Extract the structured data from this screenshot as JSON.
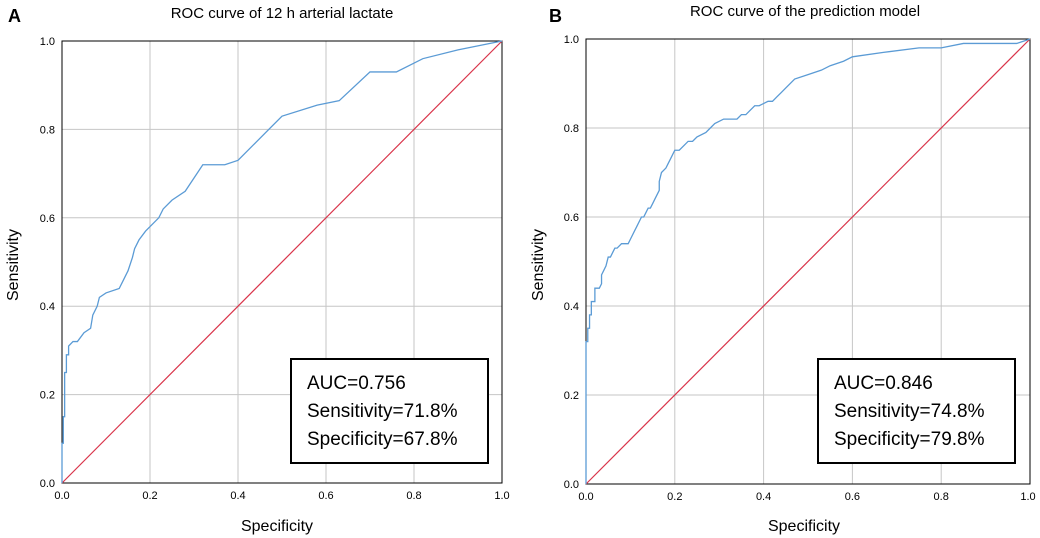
{
  "chart_data": [
    {
      "panel_label": "A",
      "type": "line",
      "title": "ROC curve of 12 h arterial lactate",
      "xlabel": "Specificity",
      "ylabel": "Sensitivity",
      "xlim": [
        0,
        1
      ],
      "ylim": [
        0,
        1
      ],
      "grid": true,
      "xticks": [
        "0.0",
        "0.2",
        "0.4",
        "0.6",
        "0.8",
        "1.0"
      ],
      "yticks": [
        "0.0",
        "0.2",
        "0.4",
        "0.6",
        "0.8",
        "1.0"
      ],
      "series": [
        {
          "name": "ROC",
          "color": "#5b9bd5",
          "x": [
            0,
            0,
            0.003,
            0.003,
            0.006,
            0.006,
            0.01,
            0.01,
            0.015,
            0.015,
            0.025,
            0.035,
            0.05,
            0.065,
            0.07,
            0.08,
            0.085,
            0.1,
            0.13,
            0.14,
            0.15,
            0.16,
            0.165,
            0.175,
            0.19,
            0.22,
            0.23,
            0.25,
            0.28,
            0.32,
            0.37,
            0.4,
            0.44,
            0.5,
            0.58,
            0.63,
            0.7,
            0.76,
            0.82,
            0.9,
            1.0
          ],
          "y": [
            0,
            0.09,
            0.09,
            0.15,
            0.15,
            0.25,
            0.25,
            0.29,
            0.29,
            0.31,
            0.32,
            0.32,
            0.34,
            0.35,
            0.38,
            0.4,
            0.42,
            0.43,
            0.44,
            0.46,
            0.48,
            0.51,
            0.53,
            0.55,
            0.57,
            0.6,
            0.62,
            0.64,
            0.66,
            0.72,
            0.72,
            0.73,
            0.77,
            0.83,
            0.855,
            0.865,
            0.93,
            0.93,
            0.96,
            0.98,
            1.0
          ]
        },
        {
          "name": "Reference",
          "color": "#d9344a",
          "x": [
            0,
            1
          ],
          "y": [
            0,
            1
          ]
        }
      ],
      "annotation": [
        "AUC=0.756",
        "Sensitivity=71.8%",
        "Specificity=67.8%"
      ],
      "legend": "bottom-right"
    },
    {
      "panel_label": "B",
      "type": "line",
      "title": "ROC curve of the prediction model",
      "xlabel": "Specificity",
      "ylabel": "Sensitivity",
      "xlim": [
        0,
        1
      ],
      "ylim": [
        0,
        1
      ],
      "grid": true,
      "xticks": [
        "0.0",
        "0.2",
        "0.4",
        "0.6",
        "0.8",
        "1.0"
      ],
      "yticks": [
        "0.0",
        "0.2",
        "0.4",
        "0.6",
        "0.8",
        "1.0"
      ],
      "series": [
        {
          "name": "ROC",
          "color": "#5b9bd5",
          "x": [
            0,
            0,
            0.004,
            0.004,
            0.008,
            0.008,
            0.012,
            0.012,
            0.02,
            0.02,
            0.025,
            0.03,
            0.035,
            0.035,
            0.04,
            0.045,
            0.05,
            0.055,
            0.06,
            0.065,
            0.07,
            0.08,
            0.095,
            0.1,
            0.11,
            0.115,
            0.125,
            0.13,
            0.135,
            0.14,
            0.145,
            0.15,
            0.155,
            0.165,
            0.165,
            0.17,
            0.18,
            0.185,
            0.19,
            0.195,
            0.2,
            0.21,
            0.22,
            0.23,
            0.24,
            0.25,
            0.27,
            0.28,
            0.29,
            0.31,
            0.34,
            0.35,
            0.36,
            0.37,
            0.38,
            0.39,
            0.41,
            0.42,
            0.43,
            0.44,
            0.45,
            0.47,
            0.5,
            0.53,
            0.55,
            0.58,
            0.6,
            0.67,
            0.75,
            0.8,
            0.85,
            0.97,
            1.0
          ],
          "y": [
            0,
            0.32,
            0.32,
            0.35,
            0.35,
            0.38,
            0.38,
            0.41,
            0.41,
            0.44,
            0.44,
            0.44,
            0.45,
            0.47,
            0.48,
            0.49,
            0.51,
            0.51,
            0.52,
            0.53,
            0.53,
            0.54,
            0.54,
            0.55,
            0.57,
            0.58,
            0.6,
            0.6,
            0.61,
            0.62,
            0.62,
            0.63,
            0.64,
            0.66,
            0.68,
            0.7,
            0.71,
            0.72,
            0.73,
            0.74,
            0.75,
            0.75,
            0.76,
            0.77,
            0.77,
            0.78,
            0.79,
            0.8,
            0.81,
            0.82,
            0.82,
            0.83,
            0.83,
            0.84,
            0.85,
            0.85,
            0.86,
            0.86,
            0.87,
            0.88,
            0.89,
            0.91,
            0.92,
            0.93,
            0.94,
            0.95,
            0.96,
            0.97,
            0.98,
            0.98,
            0.99,
            0.99,
            1.0
          ]
        },
        {
          "name": "Reference",
          "color": "#d9344a",
          "x": [
            0,
            1
          ],
          "y": [
            0,
            1
          ]
        }
      ],
      "annotation": [
        "AUC=0.846",
        "Sensitivity=74.8%",
        "Specificity=79.8%"
      ],
      "legend": "bottom-right"
    }
  ],
  "colors": {
    "grid": "#c6c6c6",
    "frame": "#000000",
    "roc": "#5b9bd5",
    "reference": "#d9344a"
  }
}
